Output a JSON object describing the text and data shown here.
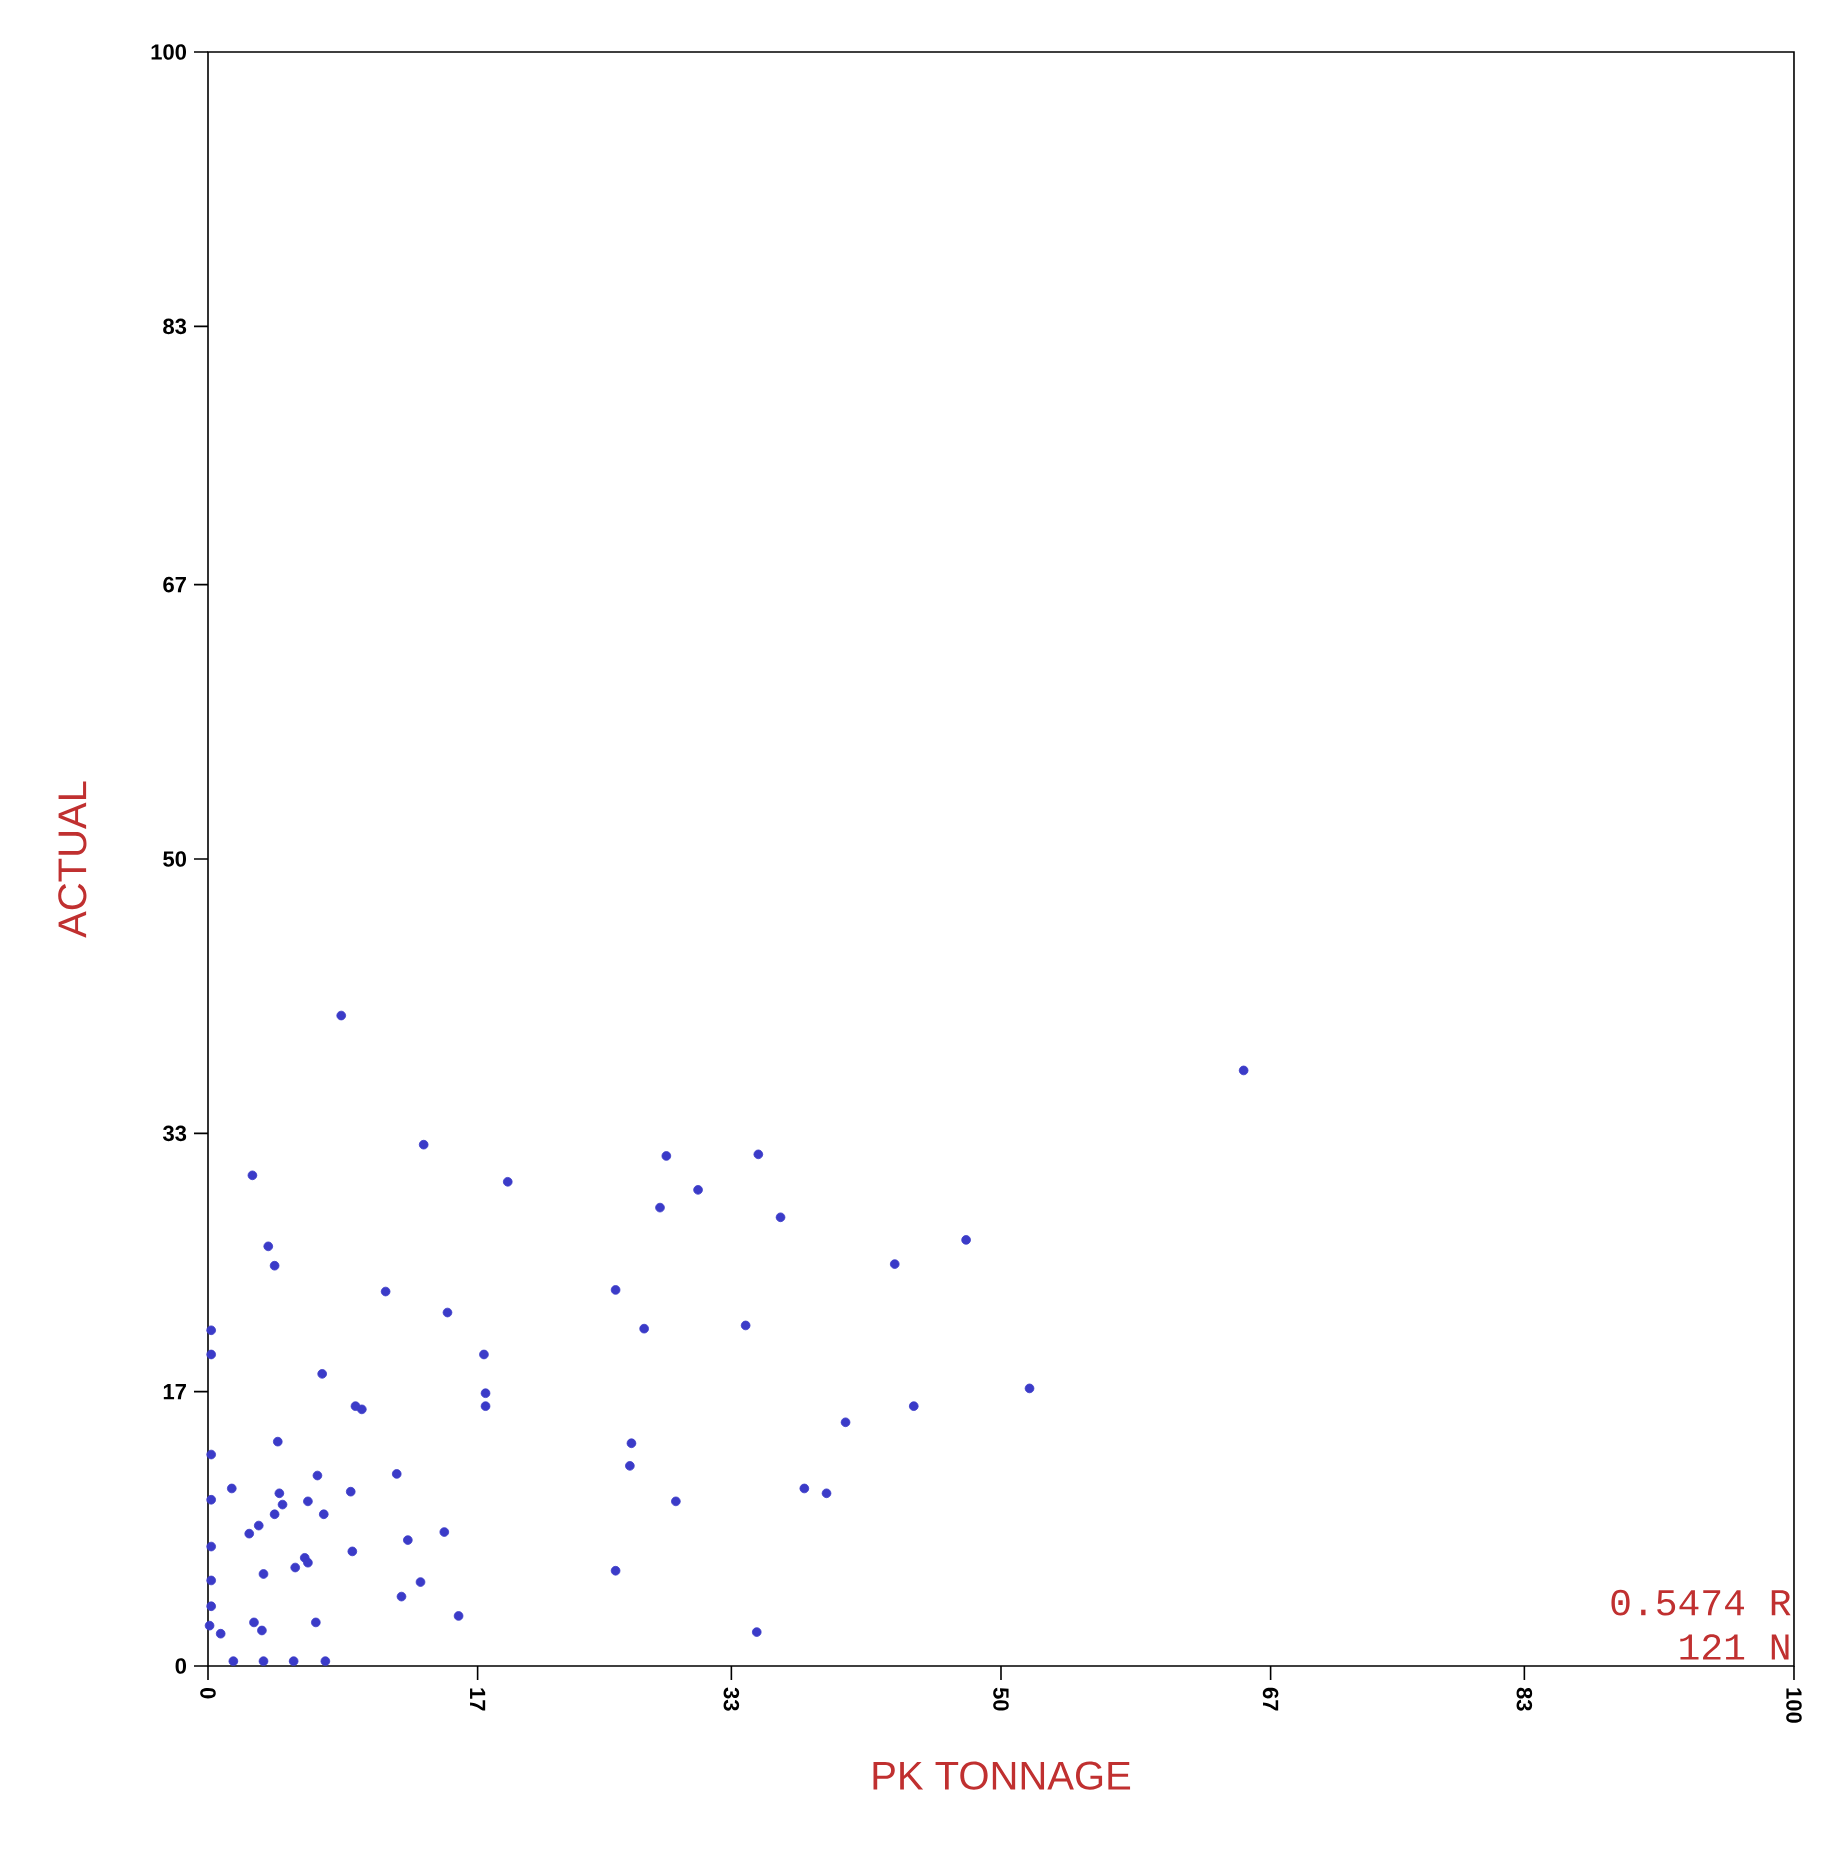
{
  "chart_data": {
    "type": "scatter",
    "xlabel": "PK TONNAGE",
    "ylabel": "ACTUAL",
    "xlim": [
      0,
      100
    ],
    "ylim": [
      0,
      100
    ],
    "xticks": [
      0,
      17,
      33,
      50,
      67,
      83,
      100
    ],
    "yticks": [
      0,
      17,
      33,
      50,
      67,
      83,
      100
    ],
    "marker": "circle",
    "annotations": [
      "0.5474 R",
      "121 N"
    ],
    "series": [
      {
        "color": "#3b3bc8",
        "x": [
          8.4,
          13.6,
          2.8,
          18.9,
          3.8,
          4.2,
          11.2,
          15.1,
          17.4,
          17.5,
          17.5,
          7.2,
          9.3,
          9.7,
          4.4,
          6.9,
          11.9,
          1.5,
          4.5,
          4.7,
          4.2,
          6.3,
          7.3,
          9.0,
          2.6,
          3.2,
          9.1,
          12.6,
          14.9,
          3.5,
          5.5,
          6.1,
          6.3,
          13.4,
          12.2,
          15.8,
          2.9,
          3.4,
          6.8,
          0.8,
          0.1,
          0.2,
          0.2,
          0.2,
          0.2,
          0.2,
          0.2,
          0.2,
          1.6,
          3.5,
          5.4,
          7.4,
          28.9,
          34.7,
          30.9,
          28.5,
          36.1,
          47.8,
          43.3,
          25.7,
          27.5,
          33.9,
          51.8,
          44.5,
          40.2,
          26.7,
          26.6,
          29.5,
          37.6,
          39.0,
          25.7,
          34.6,
          65.3
        ],
        "values": [
          40.3,
          32.3,
          30.4,
          30.0,
          26.0,
          24.8,
          23.2,
          21.9,
          19.3,
          16.9,
          16.1,
          18.1,
          16.1,
          15.9,
          13.9,
          11.8,
          11.9,
          11.0,
          10.7,
          10.0,
          9.4,
          10.2,
          9.4,
          10.8,
          8.2,
          8.7,
          7.1,
          7.8,
          8.3,
          5.7,
          6.1,
          6.7,
          6.4,
          5.2,
          4.3,
          3.1,
          2.7,
          2.2,
          2.7,
          2.0,
          2.5,
          20.8,
          19.3,
          13.1,
          10.3,
          7.4,
          5.3,
          3.7,
          0.3,
          0.3,
          0.3,
          0.3,
          31.6,
          31.7,
          29.5,
          28.4,
          27.8,
          26.4,
          24.9,
          23.3,
          20.9,
          21.1,
          17.2,
          16.1,
          15.1,
          13.8,
          12.4,
          10.2,
          11.0,
          10.7,
          5.9,
          2.1,
          36.9
        ]
      }
    ]
  }
}
